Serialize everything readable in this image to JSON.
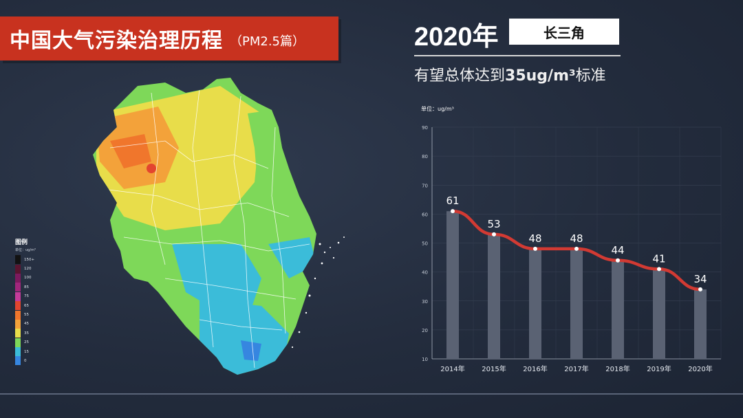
{
  "banner": {
    "title": "中国大气污染治理历程",
    "subtitle": "（PM2.5篇）"
  },
  "header": {
    "year": "2020年",
    "region": "长三角",
    "subtitle_pre": "有望总体达到",
    "subtitle_bold": "35ug/m³",
    "subtitle_post": "标准"
  },
  "legend": {
    "title": "图例",
    "unit": "单位：ug/m³",
    "items": [
      {
        "label": "150+",
        "color": "#121212"
      },
      {
        "label": "120",
        "color": "#5a1530"
      },
      {
        "label": "100",
        "color": "#7d1a5e"
      },
      {
        "label": "85",
        "color": "#a2267c"
      },
      {
        "label": "75",
        "color": "#c43b9a"
      },
      {
        "label": "65",
        "color": "#e3452f"
      },
      {
        "label": "55",
        "color": "#f0762c"
      },
      {
        "label": "45",
        "color": "#f3a23a"
      },
      {
        "label": "35",
        "color": "#e8dd4a"
      },
      {
        "label": "25",
        "color": "#7ed859"
      },
      {
        "label": "15",
        "color": "#3bbcd9"
      },
      {
        "label": "0",
        "color": "#3686e0"
      }
    ]
  },
  "chart_data": {
    "type": "bar",
    "unit_label": "单位：ug/m³",
    "categories": [
      "2014年",
      "2015年",
      "2016年",
      "2017年",
      "2018年",
      "2019年",
      "2020年"
    ],
    "values": [
      61,
      53,
      48,
      48,
      44,
      41,
      34
    ],
    "ylim": [
      10,
      90
    ],
    "yticks": [
      10,
      20,
      30,
      40,
      50,
      60,
      70,
      80,
      90
    ],
    "grid": true,
    "overlay": "line",
    "bar_color": "#5a6273",
    "line_color": "#d23a33"
  }
}
